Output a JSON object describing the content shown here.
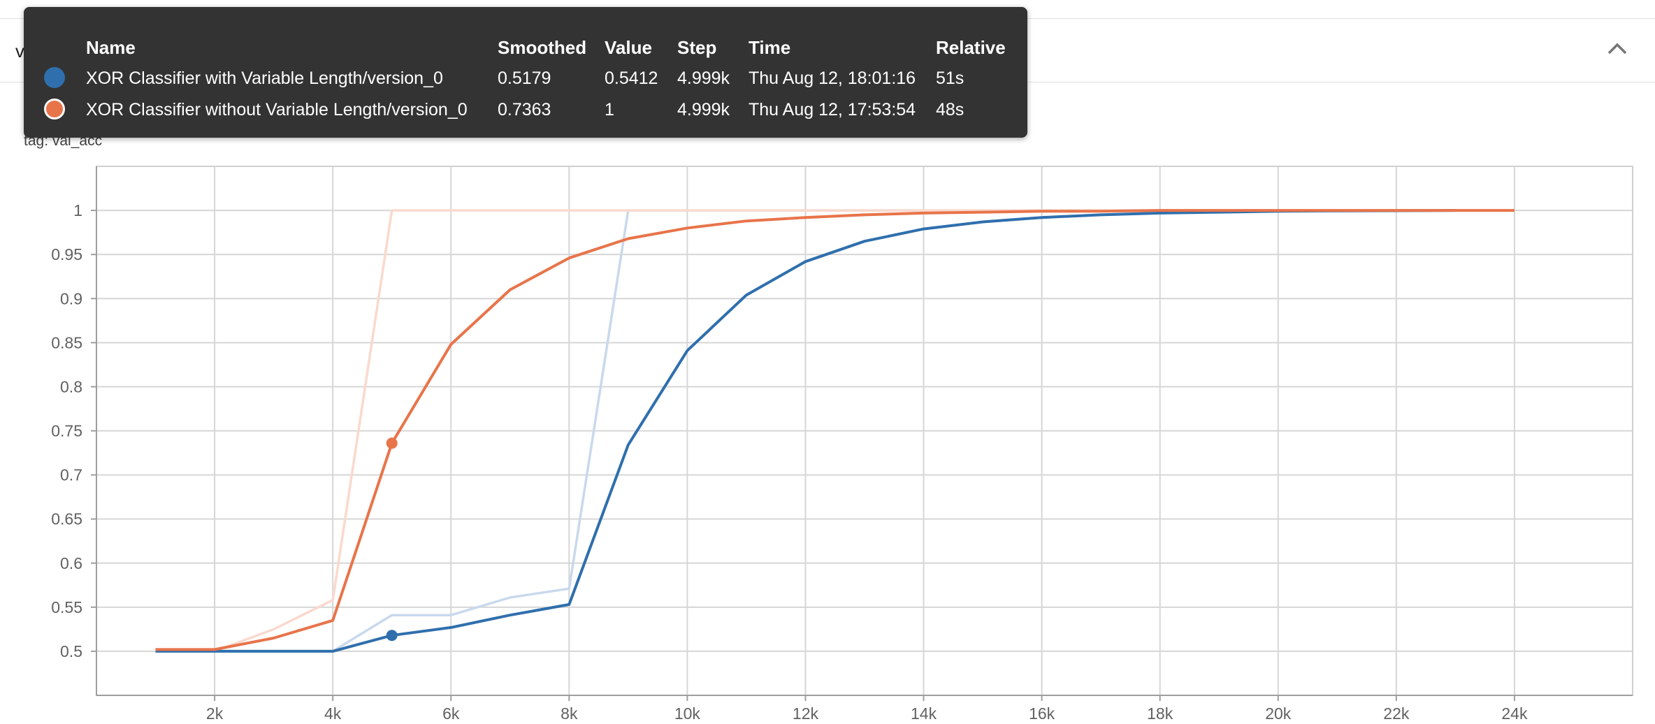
{
  "section": {
    "title": "val_acc"
  },
  "chart_title": "val_acc",
  "chart_tag": "tag: val_acc",
  "icons": {
    "collapse": "chevron-up-icon"
  },
  "tooltip": {
    "headers": {
      "name": "Name",
      "smoothed": "Smoothed",
      "value": "Value",
      "step": "Step",
      "time": "Time",
      "relative": "Relative"
    },
    "rows": [
      {
        "name": "XOR Classifier with Variable Length/version_0",
        "smoothed": "0.5179",
        "value": "0.5412",
        "step": "4.999k",
        "time": "Thu Aug 12, 18:01:16",
        "relative": "51s",
        "color": "#2f6fad"
      },
      {
        "name": "XOR Classifier without Variable Length/version_0",
        "smoothed": "0.7363",
        "value": "1",
        "step": "4.999k",
        "time": "Thu Aug 12, 17:53:54",
        "relative": "48s",
        "color": "#e8744a"
      }
    ]
  },
  "chart_data": {
    "type": "line",
    "title": "val_acc",
    "xlim": [
      0,
      26000
    ],
    "ylim": [
      0.45,
      1.05
    ],
    "x_ticks": [
      2000,
      4000,
      6000,
      8000,
      10000,
      12000,
      14000,
      16000,
      18000,
      20000,
      22000,
      24000
    ],
    "x_tick_labels": [
      "2k",
      "4k",
      "6k",
      "8k",
      "10k",
      "12k",
      "14k",
      "16k",
      "18k",
      "20k",
      "22k",
      "24k"
    ],
    "y_ticks": [
      0.5,
      0.55,
      0.6,
      0.65,
      0.7,
      0.75,
      0.8,
      0.85,
      0.9,
      0.95,
      1
    ],
    "y_tick_labels": [
      "0.5",
      "0.55",
      "0.6",
      "0.65",
      "0.7",
      "0.75",
      "0.8",
      "0.85",
      "0.9",
      "0.95",
      "1"
    ],
    "grid": true,
    "hover_step": 5000,
    "series": [
      {
        "name": "XOR Classifier with Variable Length/version_0",
        "color": "#2f6fad",
        "raw_color": "#c9d9ec",
        "x": [
          1000,
          2000,
          3000,
          4000,
          5000,
          6000,
          7000,
          8000,
          9000,
          10000,
          11000,
          12000,
          13000,
          14000,
          15000,
          16000,
          17000,
          18000,
          19000,
          20000,
          21000,
          22000,
          23000
        ],
        "raw": [
          0.5,
          0.5,
          0.5,
          0.5,
          0.541,
          0.541,
          0.561,
          0.571,
          1,
          1,
          1,
          1,
          1,
          1,
          1,
          1,
          1,
          1,
          1,
          1,
          1,
          1,
          1
        ],
        "smoothed": [
          0.5,
          0.5,
          0.5,
          0.5,
          0.518,
          0.527,
          0.541,
          0.553,
          0.734,
          0.841,
          0.904,
          0.942,
          0.965,
          0.979,
          0.987,
          0.992,
          0.995,
          0.997,
          0.998,
          0.999,
          0.9995,
          0.9997,
          1.0
        ]
      },
      {
        "name": "XOR Classifier without Variable Length/version_0",
        "color": "#e8744a",
        "raw_color": "#fad9cd",
        "x": [
          1000,
          2000,
          3000,
          4000,
          5000,
          6000,
          7000,
          8000,
          9000,
          10000,
          11000,
          12000,
          13000,
          14000,
          15000,
          16000,
          17000,
          18000,
          19000,
          20000,
          21000,
          22000,
          23000,
          24000
        ],
        "raw": [
          0.5,
          0.5,
          0.525,
          0.558,
          1,
          1,
          1,
          1,
          1,
          1,
          1,
          1,
          1,
          1,
          1,
          1,
          1,
          1,
          1,
          1,
          1,
          1,
          1,
          1
        ],
        "smoothed": [
          0.502,
          0.502,
          0.515,
          0.535,
          0.736,
          0.848,
          0.91,
          0.946,
          0.968,
          0.98,
          0.988,
          0.992,
          0.995,
          0.997,
          0.998,
          0.999,
          0.999,
          1.0,
          1.0,
          1.0,
          1.0,
          1.0,
          1.0,
          1.0
        ]
      }
    ]
  }
}
